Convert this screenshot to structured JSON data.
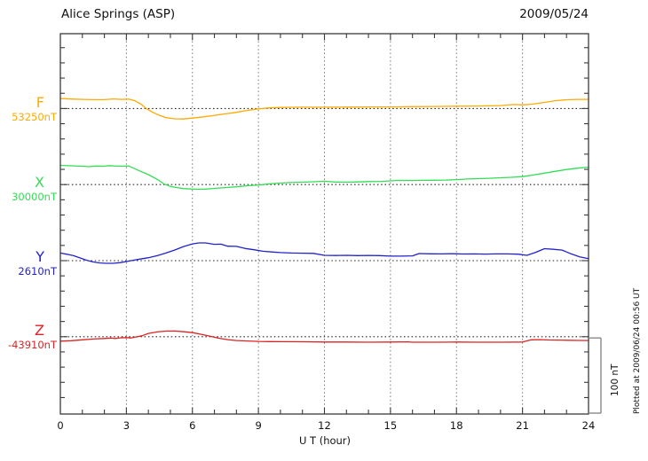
{
  "header": {
    "title": "Alice Springs (ASP)",
    "date": "2009/05/24"
  },
  "x_axis": {
    "label": "U T (hour)",
    "min": 0,
    "max": 24,
    "major_step": 3,
    "minor_step": 1,
    "tick_labels": [
      "0",
      "3",
      "6",
      "9",
      "12",
      "15",
      "18",
      "21",
      "24"
    ]
  },
  "scale_bar": {
    "label": "100 nT",
    "nT": 100
  },
  "note": {
    "plotted_at": "Plotted at 2009/06/24 00:56 UT"
  },
  "colors": {
    "frame": "#3a3a3a",
    "grid": "#777777",
    "baseline": "#222222",
    "scale_bar": "#888888",
    "text": "#111111"
  },
  "chart_data": {
    "type": "line",
    "title": "Alice Springs (ASP)",
    "date": "2009/05/24",
    "xlabel": "U T (hour)",
    "x_range": [
      0,
      24
    ],
    "x_major_ticks": [
      0,
      3,
      6,
      9,
      12,
      15,
      18,
      21,
      24
    ],
    "grid": "dotted vertical lines every 3 hours; dotted horizontal baseline per component",
    "scale": "100 nT per division (scale bar at lower right)",
    "legend_position": "left margin, one colored label per trace",
    "series": [
      {
        "name": "F",
        "baseline_label": "53250nT",
        "baseline_nT": 53250,
        "color": "#FFAA00",
        "points_hour_dnT": [
          [
            0,
            13
          ],
          [
            0.5,
            12.5
          ],
          [
            1,
            12
          ],
          [
            1.5,
            11.7
          ],
          [
            2,
            11.7
          ],
          [
            2.4,
            12.6
          ],
          [
            2.8,
            12
          ],
          [
            3.1,
            12.3
          ],
          [
            3.4,
            10
          ],
          [
            3.7,
            5
          ],
          [
            3.9,
            0
          ],
          [
            4.2,
            -5
          ],
          [
            4.5,
            -9
          ],
          [
            4.8,
            -12
          ],
          [
            5.2,
            -13.5
          ],
          [
            5.6,
            -13.8
          ],
          [
            6,
            -12.6
          ],
          [
            6.5,
            -11
          ],
          [
            7,
            -9
          ],
          [
            7.5,
            -7
          ],
          [
            8,
            -5
          ],
          [
            8.5,
            -2.5
          ],
          [
            9,
            -0.5
          ],
          [
            9.5,
            0.8
          ],
          [
            10,
            1.4
          ],
          [
            10.5,
            1.6
          ],
          [
            11,
            1.8
          ],
          [
            12,
            1.8
          ],
          [
            13,
            1.9
          ],
          [
            14,
            2.1
          ],
          [
            15,
            2.1
          ],
          [
            16,
            2.4
          ],
          [
            17,
            2.7
          ],
          [
            18,
            3
          ],
          [
            19,
            3.3
          ],
          [
            20,
            3.9
          ],
          [
            20.6,
            5.3
          ],
          [
            21,
            4.8
          ],
          [
            21.4,
            5.6
          ],
          [
            22,
            8
          ],
          [
            22.5,
            10.3
          ],
          [
            23,
            11.5
          ],
          [
            23.5,
            12
          ],
          [
            24,
            12
          ]
        ]
      },
      {
        "name": "X",
        "baseline_label": "30000nT",
        "baseline_nT": 30000,
        "color": "#33DD55",
        "points_hour_dnT": [
          [
            0,
            25.3
          ],
          [
            0.5,
            24.7
          ],
          [
            1,
            24.1
          ],
          [
            1.3,
            23.5
          ],
          [
            1.6,
            24.4
          ],
          [
            2,
            24.1
          ],
          [
            2.2,
            25
          ],
          [
            2.5,
            24.4
          ],
          [
            2.8,
            24.1
          ],
          [
            3.1,
            24.4
          ],
          [
            3.3,
            22
          ],
          [
            3.6,
            18
          ],
          [
            4,
            13
          ],
          [
            4.3,
            8.5
          ],
          [
            4.5,
            5
          ],
          [
            4.7,
            1
          ],
          [
            5,
            -2.5
          ],
          [
            5.3,
            -4
          ],
          [
            5.6,
            -5.3
          ],
          [
            6,
            -6
          ],
          [
            6.3,
            -6.2
          ],
          [
            6.6,
            -5.9
          ],
          [
            7,
            -5
          ],
          [
            7.5,
            -4
          ],
          [
            8,
            -2.9
          ],
          [
            8.5,
            -1.5
          ],
          [
            9,
            -0.6
          ],
          [
            9.5,
            0.9
          ],
          [
            10,
            2
          ],
          [
            10.5,
            2.7
          ],
          [
            11,
            3.2
          ],
          [
            11.5,
            3.7
          ],
          [
            12,
            4.4
          ],
          [
            12.5,
            3.4
          ],
          [
            13,
            3.2
          ],
          [
            13.5,
            3.5
          ],
          [
            14,
            4
          ],
          [
            14.6,
            4.2
          ],
          [
            15,
            4.9
          ],
          [
            15.3,
            5.5
          ],
          [
            16,
            5.4
          ],
          [
            16.5,
            5.6
          ],
          [
            17,
            5.7
          ],
          [
            17.5,
            6
          ],
          [
            18,
            6.5
          ],
          [
            18.5,
            7.3
          ],
          [
            19,
            7.8
          ],
          [
            19.5,
            8.3
          ],
          [
            20,
            9
          ],
          [
            20.5,
            9.6
          ],
          [
            21,
            10.5
          ],
          [
            21.5,
            12.6
          ],
          [
            22,
            15
          ],
          [
            22.5,
            17.5
          ],
          [
            23,
            19.8
          ],
          [
            23.5,
            21.6
          ],
          [
            24,
            23
          ]
        ]
      },
      {
        "name": "Y",
        "baseline_label": "2610nT",
        "baseline_nT": 2610,
        "color": "#2222CC",
        "points_hour_dnT": [
          [
            0,
            10
          ],
          [
            0.3,
            8.4
          ],
          [
            0.6,
            6.5
          ],
          [
            0.9,
            3.5
          ],
          [
            1.2,
            0.5
          ],
          [
            1.5,
            -1.8
          ],
          [
            1.8,
            -3
          ],
          [
            2.1,
            -3.5
          ],
          [
            2.4,
            -3.5
          ],
          [
            2.7,
            -2.7
          ],
          [
            3,
            -1.2
          ],
          [
            3.3,
            0.5
          ],
          [
            3.6,
            2
          ],
          [
            4,
            3.8
          ],
          [
            4.4,
            6.5
          ],
          [
            4.8,
            10
          ],
          [
            5.2,
            14
          ],
          [
            5.6,
            18.5
          ],
          [
            6,
            22
          ],
          [
            6.3,
            23.3
          ],
          [
            6.6,
            23.3
          ],
          [
            7,
            21.5
          ],
          [
            7.3,
            21.7
          ],
          [
            7.6,
            19
          ],
          [
            8,
            18.8
          ],
          [
            8.4,
            16
          ],
          [
            8.8,
            14.3
          ],
          [
            9.2,
            12.3
          ],
          [
            9.6,
            11.4
          ],
          [
            10,
            10.6
          ],
          [
            10.5,
            10
          ],
          [
            11,
            9.8
          ],
          [
            11.5,
            9.6
          ],
          [
            12,
            7
          ],
          [
            12.5,
            6.8
          ],
          [
            13,
            7
          ],
          [
            13.5,
            6.7
          ],
          [
            14,
            6.9
          ],
          [
            14.5,
            6.6
          ],
          [
            15,
            6
          ],
          [
            15.5,
            5.9
          ],
          [
            16,
            6.3
          ],
          [
            16.3,
            9.3
          ],
          [
            16.8,
            9
          ],
          [
            17.3,
            8.8
          ],
          [
            17.8,
            9.1
          ],
          [
            18.3,
            8.7
          ],
          [
            18.8,
            8.9
          ],
          [
            19.3,
            8.6
          ],
          [
            19.8,
            8.8
          ],
          [
            20.3,
            8.9
          ],
          [
            20.8,
            8.5
          ],
          [
            21.2,
            7
          ],
          [
            21.6,
            11
          ],
          [
            22,
            15.7
          ],
          [
            22.4,
            14.9
          ],
          [
            22.8,
            13.9
          ],
          [
            23.2,
            9
          ],
          [
            23.6,
            5
          ],
          [
            24,
            2.7
          ]
        ]
      },
      {
        "name": "Z",
        "baseline_label": "-43910nT",
        "baseline_nT": -43910,
        "color": "#DD2222",
        "points_hour_dnT": [
          [
            0,
            -5.8
          ],
          [
            0.5,
            -5.3
          ],
          [
            1,
            -4.1
          ],
          [
            1.5,
            -3
          ],
          [
            2,
            -2.3
          ],
          [
            2.3,
            -1.8
          ],
          [
            2.5,
            -2.3
          ],
          [
            2.7,
            -1.5
          ],
          [
            3,
            -1.2
          ],
          [
            3.2,
            -1.6
          ],
          [
            3.4,
            -0.5
          ],
          [
            3.7,
            1.2
          ],
          [
            4,
            4.3
          ],
          [
            4.4,
            6.3
          ],
          [
            4.8,
            7.3
          ],
          [
            5.2,
            7.5
          ],
          [
            5.6,
            6.5
          ],
          [
            6,
            5.4
          ],
          [
            6.4,
            3.1
          ],
          [
            6.8,
            0.6
          ],
          [
            7.2,
            -2
          ],
          [
            7.6,
            -3.9
          ],
          [
            8,
            -5
          ],
          [
            8.5,
            -5.6
          ],
          [
            9,
            -6.2
          ],
          [
            9.5,
            -6.4
          ],
          [
            10,
            -6.5
          ],
          [
            11,
            -6.6
          ],
          [
            12,
            -7
          ],
          [
            13,
            -7
          ],
          [
            14,
            -7.2
          ],
          [
            15,
            -7
          ],
          [
            15.8,
            -6.8
          ],
          [
            16,
            -7.2
          ],
          [
            17,
            -7.2
          ],
          [
            18,
            -7
          ],
          [
            19,
            -7.2
          ],
          [
            20,
            -7.2
          ],
          [
            21,
            -7
          ],
          [
            21.4,
            -4.1
          ],
          [
            21.8,
            -3.8
          ],
          [
            22.2,
            -4.3
          ],
          [
            23,
            -4.7
          ],
          [
            23.5,
            -4.9
          ],
          [
            24,
            -5
          ]
        ]
      }
    ]
  }
}
